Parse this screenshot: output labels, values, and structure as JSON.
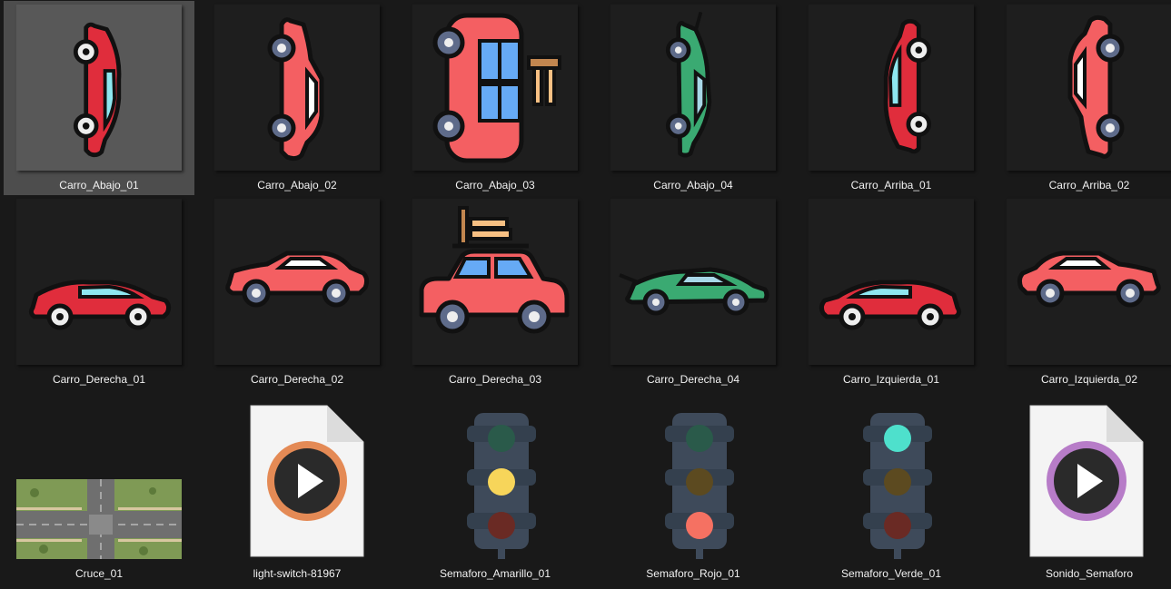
{
  "files": [
    {
      "label": "Carro_Abajo_01",
      "icon": "car-red-top-down-icon",
      "selected": true
    },
    {
      "label": "Carro_Abajo_02",
      "icon": "car-coral-top-down-icon"
    },
    {
      "label": "Carro_Abajo_03",
      "icon": "car-luggage-top-down-icon"
    },
    {
      "label": "Carro_Abajo_04",
      "icon": "car-green-top-down-icon"
    },
    {
      "label": "Carro_Arriba_01",
      "icon": "car-red-top-up-icon"
    },
    {
      "label": "Carro_Arriba_02",
      "icon": "car-coral-top-up-icon"
    },
    {
      "label": "Carro_Derecha_01",
      "icon": "car-red-right-icon"
    },
    {
      "label": "Carro_Derecha_02",
      "icon": "car-coral-right-icon"
    },
    {
      "label": "Carro_Derecha_03",
      "icon": "car-luggage-right-icon"
    },
    {
      "label": "Carro_Derecha_04",
      "icon": "car-green-right-icon"
    },
    {
      "label": "Carro_Izquierda_01",
      "icon": "car-red-left-icon"
    },
    {
      "label": "Carro_Izquierda_02",
      "icon": "car-coral-left-icon"
    },
    {
      "label": "Cruce_01",
      "icon": "intersection-map-icon"
    },
    {
      "label": "light-switch-81967",
      "icon": "audio-file-icon"
    },
    {
      "label": "Semaforo_Amarillo_01",
      "icon": "traffic-light-yellow-icon"
    },
    {
      "label": "Semaforo_Rojo_01",
      "icon": "traffic-light-red-icon"
    },
    {
      "label": "Semaforo_Verde_01",
      "icon": "traffic-light-green-icon"
    },
    {
      "label": "Sonido_Semaforo",
      "icon": "audio-file-icon"
    }
  ],
  "colors": {
    "background": "#191919",
    "selected": "#4d4d4d",
    "car_red": "#e02d3c",
    "car_coral": "#f45f62",
    "car_green": "#3aaa72",
    "glass_cyan": "#8ee7f0",
    "glass_blue": "#66aaf5",
    "light_yellow": "#f7d55a",
    "light_red": "#f57162",
    "light_green": "#4ee0cc"
  }
}
